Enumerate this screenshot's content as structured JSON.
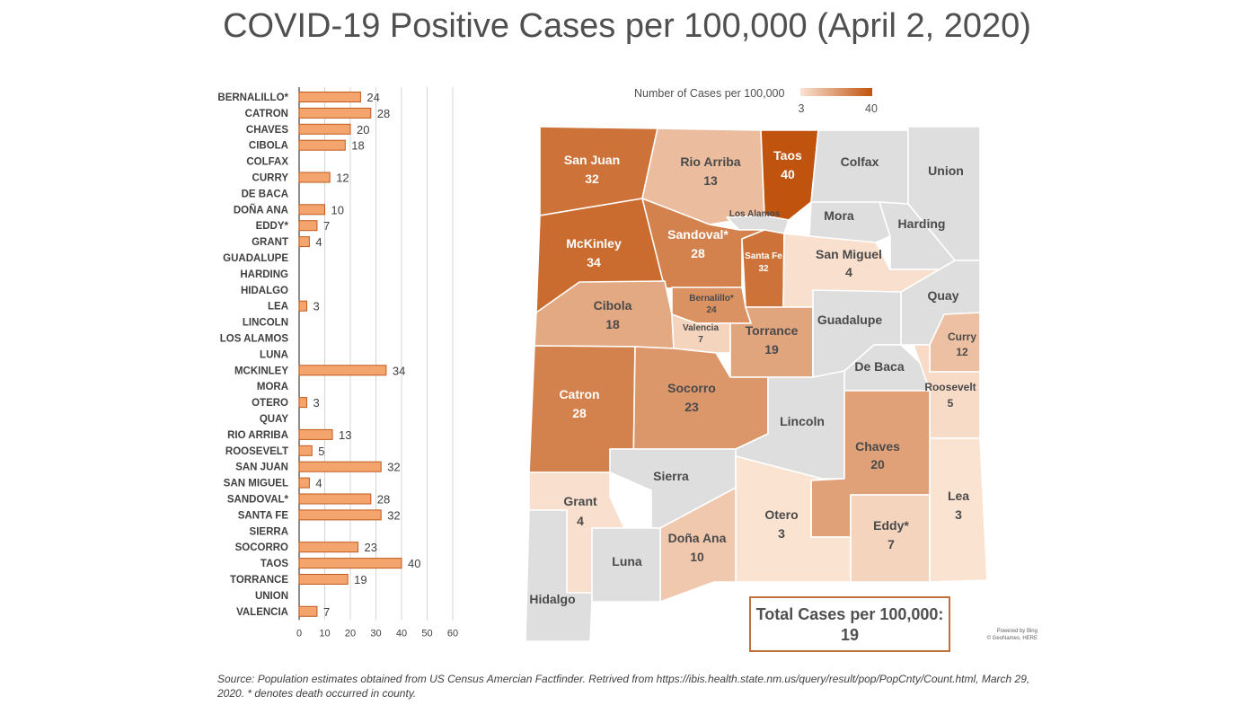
{
  "title": "COVID-19 Positive Cases per 100,000 (April 2, 2020)",
  "colors": {
    "bar_fill": "#f4a46d",
    "bar_stroke": "#c05a1e",
    "scale_low": "#fbe3d2",
    "scale_high": "#c0540f",
    "no_data": "#dedede",
    "border": "#ffffff"
  },
  "chart_data": {
    "type": "bar",
    "orientation": "horizontal",
    "categories": [
      "BERNALILLO*",
      "CATRON",
      "CHAVES",
      "CIBOLA",
      "COLFAX",
      "CURRY",
      "DE BACA",
      "DOÑA ANA",
      "EDDY*",
      "GRANT",
      "GUADALUPE",
      "HARDING",
      "HIDALGO",
      "LEA",
      "LINCOLN",
      "LOS ALAMOS",
      "LUNA",
      "MCKINLEY",
      "MORA",
      "OTERO",
      "QUAY",
      "RIO ARRIBA",
      "ROOSEVELT",
      "SAN JUAN",
      "SAN MIGUEL",
      "SANDOVAL*",
      "SANTA FE",
      "SIERRA",
      "SOCORRO",
      "TAOS",
      "TORRANCE",
      "UNION",
      "VALENCIA"
    ],
    "values": [
      24,
      28,
      20,
      18,
      null,
      12,
      null,
      10,
      7,
      4,
      null,
      null,
      null,
      3,
      null,
      null,
      null,
      34,
      null,
      3,
      null,
      13,
      5,
      32,
      4,
      28,
      32,
      null,
      23,
      40,
      19,
      null,
      7
    ],
    "value_labels": [
      "24",
      "28",
      "20",
      "18",
      "",
      "12",
      "",
      "10",
      "7",
      "4",
      "",
      "",
      "",
      "3",
      "",
      "",
      "",
      "34",
      "",
      "3",
      "",
      "13",
      "5",
      "32",
      "4",
      "28",
      "32",
      "",
      "23",
      "40",
      "19",
      "",
      "7"
    ],
    "xlim": [
      0,
      60
    ],
    "x_ticks": [
      "0",
      "10",
      "20",
      "30",
      "40",
      "50",
      "60"
    ],
    "grid": true
  },
  "map": {
    "legend_title": "Number of Cases per 100,000",
    "legend_min": "3",
    "legend_max": "40",
    "counties": [
      {
        "name": "San Juan",
        "value": "32",
        "v": 32
      },
      {
        "name": "Rio Arriba",
        "value": "13",
        "v": 13
      },
      {
        "name": "Taos",
        "value": "40",
        "v": 40
      },
      {
        "name": "Colfax",
        "value": "",
        "v": null
      },
      {
        "name": "Union",
        "value": "",
        "v": null
      },
      {
        "name": "Los Alamos",
        "value": "",
        "v": null
      },
      {
        "name": "Mora",
        "value": "",
        "v": null
      },
      {
        "name": "Harding",
        "value": "",
        "v": null
      },
      {
        "name": "McKinley",
        "value": "34",
        "v": 34
      },
      {
        "name": "Sandoval*",
        "value": "28",
        "v": 28
      },
      {
        "name": "Santa Fe",
        "value": "32",
        "v": 32
      },
      {
        "name": "San Miguel",
        "value": "4",
        "v": 4
      },
      {
        "name": "Quay",
        "value": "",
        "v": null
      },
      {
        "name": "Cibola",
        "value": "18",
        "v": 18
      },
      {
        "name": "Bernalillo*",
        "value": "24",
        "v": 24
      },
      {
        "name": "Valencia",
        "value": "7",
        "v": 7
      },
      {
        "name": "Torrance",
        "value": "19",
        "v": 19
      },
      {
        "name": "Guadalupe",
        "value": "",
        "v": null
      },
      {
        "name": "Curry",
        "value": "12",
        "v": 12
      },
      {
        "name": "De Baca",
        "value": "",
        "v": null
      },
      {
        "name": "Roosevelt",
        "value": "5",
        "v": 5
      },
      {
        "name": "Catron",
        "value": "28",
        "v": 28
      },
      {
        "name": "Socorro",
        "value": "23",
        "v": 23
      },
      {
        "name": "Lincoln",
        "value": "",
        "v": null
      },
      {
        "name": "Chaves",
        "value": "20",
        "v": 20
      },
      {
        "name": "Sierra",
        "value": "",
        "v": null
      },
      {
        "name": "Grant",
        "value": "4",
        "v": 4
      },
      {
        "name": "Otero",
        "value": "3",
        "v": 3
      },
      {
        "name": "Eddy*",
        "value": "7",
        "v": 7
      },
      {
        "name": "Lea",
        "value": "3",
        "v": 3
      },
      {
        "name": "Doña Ana",
        "value": "10",
        "v": 10
      },
      {
        "name": "Luna",
        "value": "",
        "v": null
      },
      {
        "name": "Hidalgo",
        "value": "",
        "v": null
      }
    ],
    "total_label": "Total Cases per 100,000:",
    "total_value": "19",
    "credit_line1": "Powered by Bing",
    "credit_line2": "© GeoNames, HERE"
  },
  "source_note": "Source: Population estimates obtained from US Census Amercian Factfinder.  Retrived from https://ibis.health.state.nm.us/query/result/pop/PopCnty/Count.html, March 29, 2020. * denotes death occurred in county."
}
